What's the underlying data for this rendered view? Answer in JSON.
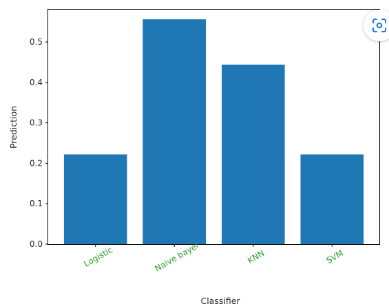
{
  "chart_data": {
    "type": "bar",
    "categories": [
      "Logistic",
      "Naive bayer",
      "KNN",
      "SVM"
    ],
    "values": [
      0.222,
      0.556,
      0.444,
      0.222
    ],
    "title": "",
    "xlabel": "Classifier",
    "ylabel": "Prediction",
    "ylim": [
      0,
      0.58
    ],
    "yticks": [
      {
        "value": 0.0,
        "label": "0.0"
      },
      {
        "value": 0.1,
        "label": "0.1"
      },
      {
        "value": 0.2,
        "label": "0.2"
      },
      {
        "value": 0.3,
        "label": "0.3"
      },
      {
        "value": 0.4,
        "label": "0.4"
      },
      {
        "value": 0.5,
        "label": "0.5"
      }
    ],
    "grid": false,
    "legend": "none",
    "bar_color": "#1f77b4",
    "xtick_label_color": "#2ca02c",
    "xtick_label_rotation_deg": -30
  },
  "overlay": {
    "lens_icon": "image-search-lens-icon"
  }
}
